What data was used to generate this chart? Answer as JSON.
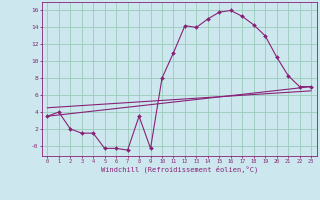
{
  "xlabel": "Windchill (Refroidissement éolien,°C)",
  "background_color": "#cce8ee",
  "grid_color": "#99ccbb",
  "line_color": "#882277",
  "xlim": [
    -0.5,
    23.5
  ],
  "ylim": [
    -1.2,
    17.0
  ],
  "xticks": [
    0,
    1,
    2,
    3,
    4,
    5,
    6,
    7,
    8,
    9,
    10,
    11,
    12,
    13,
    14,
    15,
    16,
    17,
    18,
    19,
    20,
    21,
    22,
    23
  ],
  "yticks": [
    0,
    2,
    4,
    6,
    8,
    10,
    12,
    14,
    16
  ],
  "ytick_labels": [
    "-0",
    "2",
    "4",
    "6",
    "8",
    "10",
    "12",
    "14",
    "16"
  ],
  "curve1_x": [
    0,
    1,
    2,
    3,
    4,
    5,
    6,
    7,
    8,
    9,
    10,
    11,
    12,
    13,
    14,
    15,
    16,
    17,
    18,
    19,
    20,
    21,
    22,
    23
  ],
  "curve1_y": [
    3.5,
    4.0,
    2.0,
    1.5,
    1.5,
    -0.3,
    -0.3,
    -0.5,
    3.5,
    -0.3,
    8.0,
    11.0,
    14.2,
    14.0,
    15.0,
    15.8,
    16.0,
    15.3,
    14.3,
    13.0,
    10.5,
    8.3,
    7.0,
    7.0
  ],
  "curve2_x": [
    0,
    23
  ],
  "curve2_y": [
    4.5,
    6.5
  ],
  "curve3_x": [
    0,
    23
  ],
  "curve3_y": [
    3.5,
    7.0
  ]
}
